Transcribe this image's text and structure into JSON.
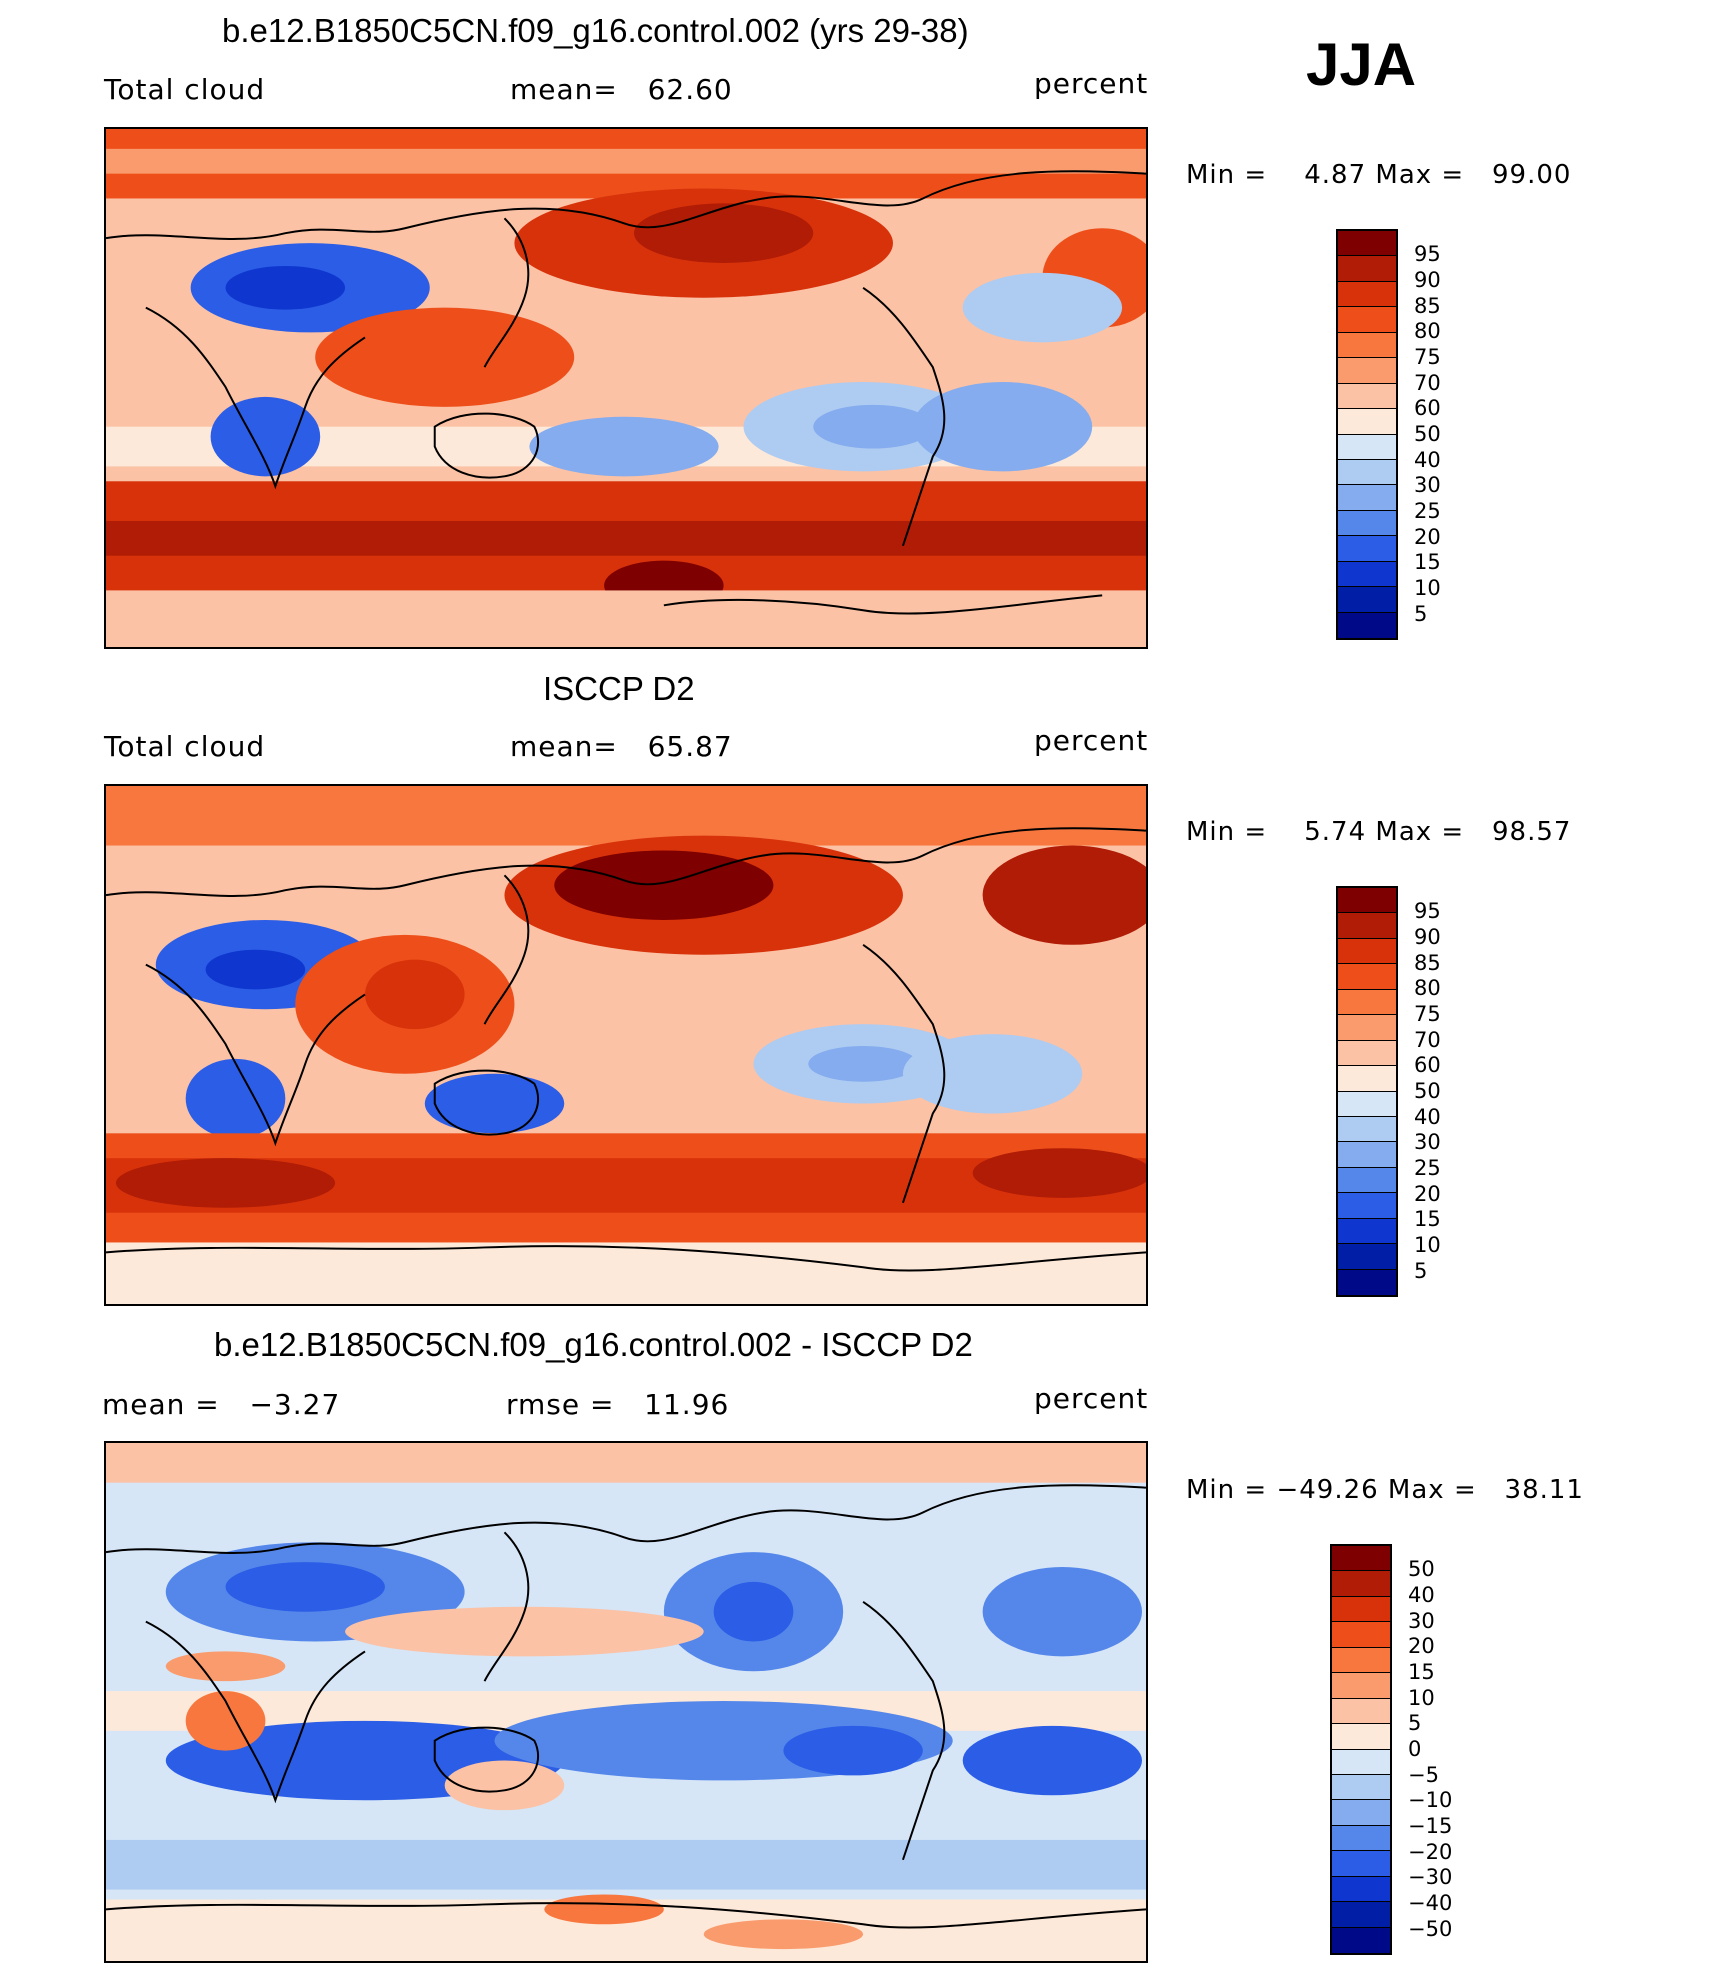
{
  "season": "JJA",
  "panels": [
    {
      "title": "b.e12.B1850C5CN.f09_g16.control.002 (yrs 29-38)",
      "left_label": "Total cloud",
      "center_label": "mean=   62.60",
      "units": "percent",
      "minmax": "Min =    4.87 Max =   99.00",
      "colorbar_labels": [
        "95",
        "90",
        "85",
        "80",
        "75",
        "70",
        "60",
        "50",
        "40",
        "30",
        "25",
        "20",
        "15",
        "10",
        "5"
      ]
    },
    {
      "title": "ISCCP D2",
      "left_label": "Total cloud",
      "center_label": "mean=   65.87",
      "units": "percent",
      "minmax": "Min =    5.74 Max =   98.57",
      "colorbar_labels": [
        "95",
        "90",
        "85",
        "80",
        "75",
        "70",
        "60",
        "50",
        "40",
        "30",
        "25",
        "20",
        "15",
        "10",
        "5"
      ]
    },
    {
      "title": "b.e12.B1850C5CN.f09_g16.control.002 - ISCCP D2",
      "left_label": "mean =   −3.27",
      "center_label": "rmse =   11.96",
      "units": "percent",
      "minmax": "Min = −49.26 Max =   38.11",
      "colorbar_labels": [
        "50",
        "40",
        "30",
        "20",
        "15",
        "10",
        "5",
        "0",
        "−5",
        "−10",
        "−15",
        "−20",
        "−30",
        "−40",
        "−50"
      ]
    }
  ],
  "colorbar_colors": [
    "#7f0000",
    "#b01c05",
    "#d8320b",
    "#ee4f1a",
    "#f7773f",
    "#f99b6d",
    "#fbc2a5",
    "#fde9d9",
    "#d6e6f7",
    "#aecbf2",
    "#84acee",
    "#5587eb",
    "#2b5de6",
    "#0f37cf",
    "#001ea6",
    "#000a88"
  ],
  "map_colors": {
    "land": "none",
    "coast": "#000000",
    "low": "#1e4fe0",
    "mid_low": "#9bbbf0",
    "neutral": "#fde5d3",
    "mid_high": "#f7a07a",
    "high": "#e24a1c",
    "max": "#a01005"
  }
}
